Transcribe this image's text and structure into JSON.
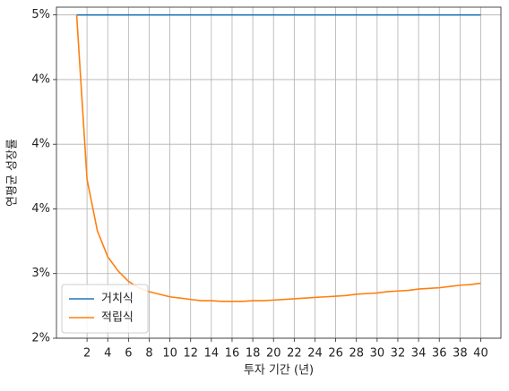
{
  "chart_data": {
    "type": "line",
    "xlabel": "투자 기간 (년)",
    "ylabel": "연평균 성장률",
    "x": [
      1,
      2,
      3,
      4,
      5,
      6,
      7,
      8,
      9,
      10,
      11,
      12,
      13,
      14,
      15,
      16,
      17,
      18,
      19,
      20,
      21,
      22,
      23,
      24,
      25,
      26,
      27,
      28,
      29,
      30,
      31,
      32,
      33,
      34,
      35,
      36,
      37,
      38,
      39,
      40
    ],
    "series": [
      {
        "name": "거치식",
        "color": "#1f77b4",
        "values": [
          5,
          5,
          5,
          5,
          5,
          5,
          5,
          5,
          5,
          5,
          5,
          5,
          5,
          5,
          5,
          5,
          5,
          5,
          5,
          5,
          5,
          5,
          5,
          5,
          5,
          5,
          5,
          5,
          5,
          5,
          5,
          5,
          5,
          5,
          5,
          5,
          5,
          5,
          5,
          5
        ]
      },
      {
        "name": "적립식",
        "color": "#ff7f0e",
        "values": [
          5.0,
          3.73,
          3.33,
          3.13,
          3.02,
          2.94,
          2.89,
          2.86,
          2.84,
          2.82,
          2.81,
          2.8,
          2.79,
          2.79,
          2.785,
          2.785,
          2.785,
          2.79,
          2.79,
          2.795,
          2.8,
          2.805,
          2.81,
          2.815,
          2.82,
          2.825,
          2.83,
          2.84,
          2.845,
          2.85,
          2.86,
          2.865,
          2.87,
          2.88,
          2.885,
          2.89,
          2.9,
          2.91,
          2.915,
          2.925
        ]
      }
    ],
    "xlim": [
      -0.95,
      41.95
    ],
    "xticks": [
      2,
      4,
      6,
      8,
      10,
      12,
      14,
      16,
      18,
      20,
      22,
      24,
      26,
      28,
      30,
      32,
      34,
      36,
      38,
      40
    ],
    "ylim": [
      2.5,
      5.06
    ],
    "yticks": [
      {
        "value": 2.5,
        "label": "2%"
      },
      {
        "value": 3.0,
        "label": "3%"
      },
      {
        "value": 3.5,
        "label": "4%"
      },
      {
        "value": 4.0,
        "label": "4%"
      },
      {
        "value": 4.5,
        "label": "4%"
      },
      {
        "value": 5.0,
        "label": "5%"
      }
    ],
    "grid": true,
    "legend": "lower-left"
  }
}
